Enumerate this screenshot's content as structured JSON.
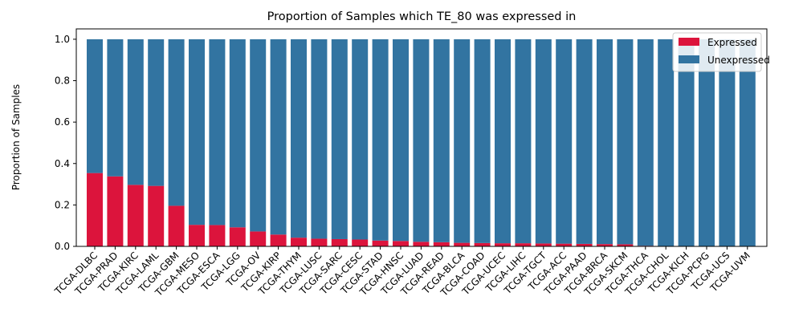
{
  "chart_data": {
    "type": "bar",
    "stacked": true,
    "title": "Proportion of Samples which TE_80 was expressed in",
    "xlabel": "",
    "ylabel": "Proportion of Samples",
    "ylim": [
      0,
      1.05
    ],
    "yticks": [
      "0.0",
      "0.2",
      "0.4",
      "0.6",
      "0.8",
      "1.0"
    ],
    "grid": false,
    "legend_position": "top-right",
    "categories": [
      "TCGA-DLBC",
      "TCGA-PRAD",
      "TCGA-KIRC",
      "TCGA-LAML",
      "TCGA-GBM",
      "TCGA-MESO",
      "TCGA-ESCA",
      "TCGA-LGG",
      "TCGA-OV",
      "TCGA-KIRP",
      "TCGA-THYM",
      "TCGA-LUSC",
      "TCGA-SARC",
      "TCGA-CESC",
      "TCGA-STAD",
      "TCGA-HNSC",
      "TCGA-LUAD",
      "TCGA-READ",
      "TCGA-BLCA",
      "TCGA-COAD",
      "TCGA-UCEC",
      "TCGA-LIHC",
      "TCGA-TGCT",
      "TCGA-ACC",
      "TCGA-PAAD",
      "TCGA-BRCA",
      "TCGA-SKCM",
      "TCGA-THCA",
      "TCGA-CHOL",
      "TCGA-KICH",
      "TCGA-PCPG",
      "TCGA-UCS",
      "TCGA-UVM"
    ],
    "series": [
      {
        "name": "Expressed",
        "color": "#dc143c",
        "values": [
          0.354,
          0.338,
          0.297,
          0.292,
          0.196,
          0.104,
          0.103,
          0.092,
          0.072,
          0.057,
          0.042,
          0.037,
          0.035,
          0.033,
          0.028,
          0.026,
          0.022,
          0.02,
          0.017,
          0.016,
          0.015,
          0.015,
          0.014,
          0.013,
          0.012,
          0.011,
          0.01,
          0.003,
          0,
          0,
          0,
          0,
          0
        ]
      },
      {
        "name": "Unexpressed",
        "color": "#3274a1",
        "values": [
          0.646,
          0.662,
          0.703,
          0.708,
          0.804,
          0.896,
          0.897,
          0.908,
          0.928,
          0.943,
          0.958,
          0.963,
          0.965,
          0.967,
          0.972,
          0.974,
          0.978,
          0.98,
          0.983,
          0.984,
          0.985,
          0.985,
          0.986,
          0.987,
          0.988,
          0.989,
          0.99,
          0.997,
          1,
          1,
          1,
          1,
          1
        ]
      }
    ]
  }
}
